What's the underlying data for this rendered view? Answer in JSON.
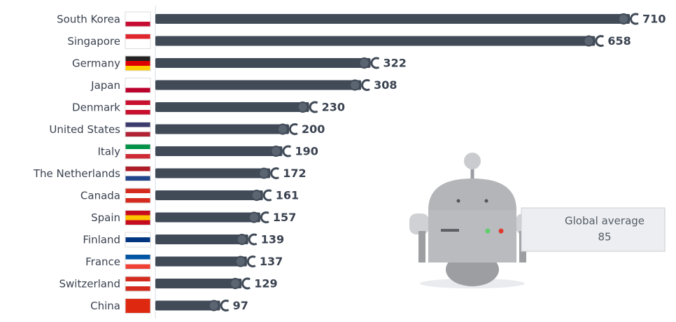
{
  "chart_data": {
    "type": "bar",
    "orientation": "horizontal",
    "categories": [
      "South Korea",
      "Singapore",
      "Germany",
      "Japan",
      "Denmark",
      "United States",
      "Italy",
      "The Netherlands",
      "Canada",
      "Spain",
      "Finland",
      "France",
      "Switzerland",
      "China"
    ],
    "values": [
      710,
      658,
      322,
      308,
      230,
      200,
      190,
      172,
      161,
      157,
      139,
      137,
      129,
      97
    ],
    "color": "#414b58",
    "annotation": {
      "label": "Global average",
      "value": 85
    }
  }
}
